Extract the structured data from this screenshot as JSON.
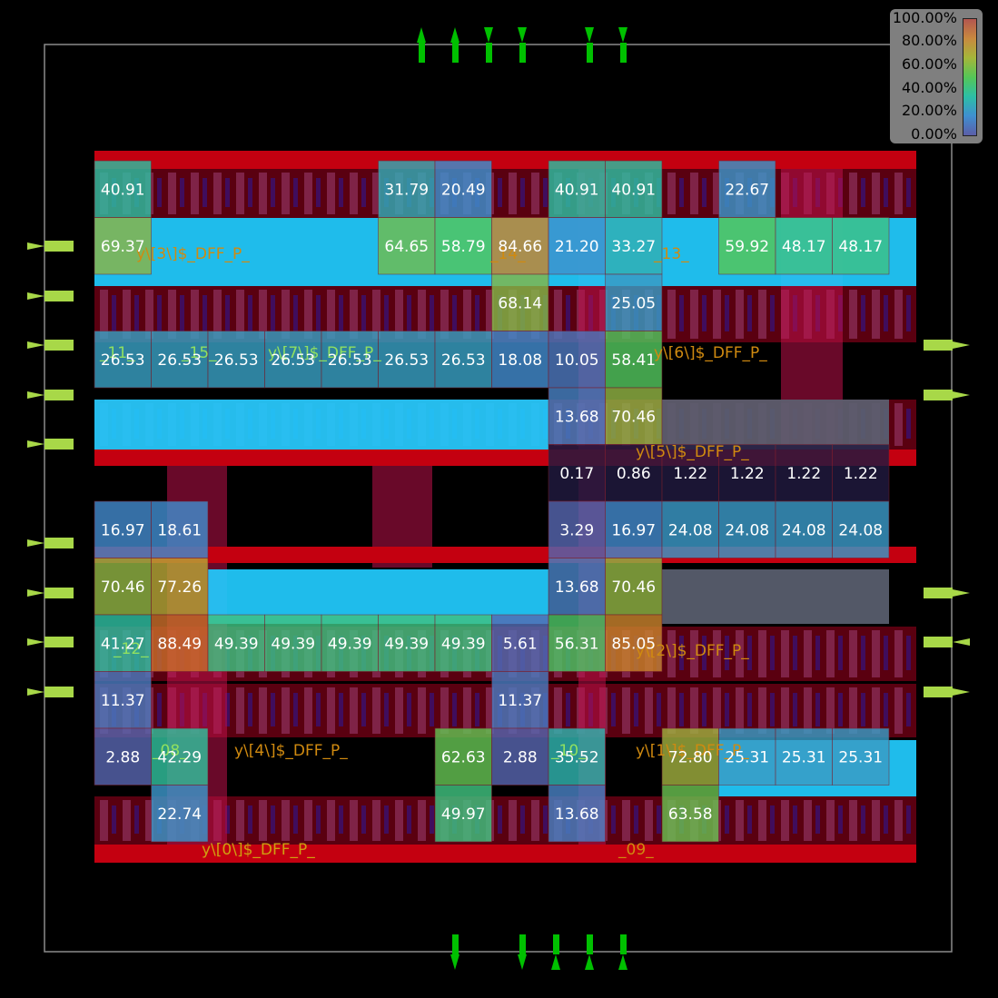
{
  "legend": {
    "labels": [
      "100.00%",
      "80.00%",
      "60.00%",
      "40.00%",
      "20.00%",
      "0.00%"
    ]
  },
  "chart_data": {
    "type": "heatmap",
    "title": "",
    "xlabel": "",
    "ylabel": "",
    "colormap_range": [
      0,
      100
    ],
    "cell_labels": [
      {
        "row": 0,
        "col": 0,
        "value": 40.91
      },
      {
        "row": 0,
        "col": 5,
        "value": 31.79
      },
      {
        "row": 0,
        "col": 6,
        "value": 20.49
      },
      {
        "row": 0,
        "col": 8,
        "value": 40.91
      },
      {
        "row": 0,
        "col": 9,
        "value": 40.91
      },
      {
        "row": 0,
        "col": 11,
        "value": 22.67
      },
      {
        "row": 1,
        "col": 0,
        "value": 69.37
      },
      {
        "row": 1,
        "col": 5,
        "value": 64.65
      },
      {
        "row": 1,
        "col": 6,
        "value": 58.79
      },
      {
        "row": 1,
        "col": 7,
        "value": 84.66
      },
      {
        "row": 1,
        "col": 8,
        "value": 21.2
      },
      {
        "row": 1,
        "col": 9,
        "value": 33.27
      },
      {
        "row": 1,
        "col": 11,
        "value": 59.92
      },
      {
        "row": 1,
        "col": 12,
        "value": 48.17
      },
      {
        "row": 1,
        "col": 13,
        "value": 48.17
      },
      {
        "row": 2,
        "col": 7,
        "value": 68.14
      },
      {
        "row": 2,
        "col": 9,
        "value": 25.05
      },
      {
        "row": 3,
        "col": 0,
        "value": 26.53
      },
      {
        "row": 3,
        "col": 1,
        "value": 26.53
      },
      {
        "row": 3,
        "col": 2,
        "value": 26.53
      },
      {
        "row": 3,
        "col": 3,
        "value": 26.53
      },
      {
        "row": 3,
        "col": 4,
        "value": 26.53
      },
      {
        "row": 3,
        "col": 5,
        "value": 26.53
      },
      {
        "row": 3,
        "col": 6,
        "value": 26.53
      },
      {
        "row": 3,
        "col": 7,
        "value": 18.08
      },
      {
        "row": 3,
        "col": 8,
        "value": 10.05
      },
      {
        "row": 3,
        "col": 9,
        "value": 58.41
      },
      {
        "row": 4,
        "col": 8,
        "value": 13.68
      },
      {
        "row": 4,
        "col": 9,
        "value": 70.46
      },
      {
        "row": 5,
        "col": 8,
        "value": 0.17
      },
      {
        "row": 5,
        "col": 9,
        "value": 0.86
      },
      {
        "row": 5,
        "col": 10,
        "value": 1.22
      },
      {
        "row": 5,
        "col": 11,
        "value": 1.22
      },
      {
        "row": 5,
        "col": 12,
        "value": 1.22
      },
      {
        "row": 5,
        "col": 13,
        "value": 1.22
      },
      {
        "row": 6,
        "col": 0,
        "value": 16.97
      },
      {
        "row": 6,
        "col": 1,
        "value": 18.61
      },
      {
        "row": 6,
        "col": 8,
        "value": 3.29
      },
      {
        "row": 6,
        "col": 9,
        "value": 16.97
      },
      {
        "row": 6,
        "col": 10,
        "value": 24.08
      },
      {
        "row": 6,
        "col": 11,
        "value": 24.08
      },
      {
        "row": 6,
        "col": 12,
        "value": 24.08
      },
      {
        "row": 6,
        "col": 13,
        "value": 24.08
      },
      {
        "row": 7,
        "col": 0,
        "value": 70.46
      },
      {
        "row": 7,
        "col": 1,
        "value": 77.26
      },
      {
        "row": 7,
        "col": 8,
        "value": 13.68
      },
      {
        "row": 7,
        "col": 9,
        "value": 70.46
      },
      {
        "row": 8,
        "col": 0,
        "value": 41.27
      },
      {
        "row": 8,
        "col": 1,
        "value": 88.49
      },
      {
        "row": 8,
        "col": 2,
        "value": 49.39
      },
      {
        "row": 8,
        "col": 3,
        "value": 49.39
      },
      {
        "row": 8,
        "col": 4,
        "value": 49.39
      },
      {
        "row": 8,
        "col": 5,
        "value": 49.39
      },
      {
        "row": 8,
        "col": 6,
        "value": 49.39
      },
      {
        "row": 8,
        "col": 7,
        "value": 5.61
      },
      {
        "row": 8,
        "col": 8,
        "value": 56.31
      },
      {
        "row": 8,
        "col": 9,
        "value": 85.05
      },
      {
        "row": 9,
        "col": 0,
        "value": 11.37
      },
      {
        "row": 9,
        "col": 7,
        "value": 11.37
      },
      {
        "row": 10,
        "col": 0,
        "value": 2.88
      },
      {
        "row": 10,
        "col": 1,
        "value": 42.29
      },
      {
        "row": 10,
        "col": 6,
        "value": 62.63
      },
      {
        "row": 10,
        "col": 7,
        "value": 2.88
      },
      {
        "row": 10,
        "col": 8,
        "value": 35.52
      },
      {
        "row": 10,
        "col": 10,
        "value": 72.8
      },
      {
        "row": 10,
        "col": 11,
        "value": 25.31
      },
      {
        "row": 10,
        "col": 12,
        "value": 25.31
      },
      {
        "row": 10,
        "col": 13,
        "value": 25.31
      },
      {
        "row": 11,
        "col": 1,
        "value": 22.74
      },
      {
        "row": 11,
        "col": 6,
        "value": 49.97
      },
      {
        "row": 11,
        "col": 8,
        "value": 13.68
      },
      {
        "row": 11,
        "col": 10,
        "value": 63.58
      }
    ],
    "cell_names": [
      "y\\[3\\]$_DFF_P_",
      "_14_",
      "_13_",
      "_11_",
      "_15_",
      "y\\[7\\]$_DFF_P_",
      "y\\[6\\]$_DFF_P_",
      "y\\[5\\]$_DFF_P_",
      "_12_",
      "y\\[2\\]$_DFF_P_",
      "_08_",
      "y\\[4\\]$_DFF_P_",
      "_10_",
      "y\\[1\\]$_DFF_P_",
      "y\\[0\\]$_DFF_P_",
      "_09_"
    ],
    "pins": {
      "top": [
        "up",
        "up",
        "down",
        "down",
        "down",
        "down"
      ],
      "bottom": [
        "down",
        "down",
        "up",
        "up",
        "up"
      ],
      "left": [
        "in",
        "in",
        "in",
        "in",
        "in",
        "in",
        "in",
        "in",
        "in"
      ],
      "right": [
        "out",
        "out",
        "out",
        "in",
        "out"
      ]
    }
  }
}
